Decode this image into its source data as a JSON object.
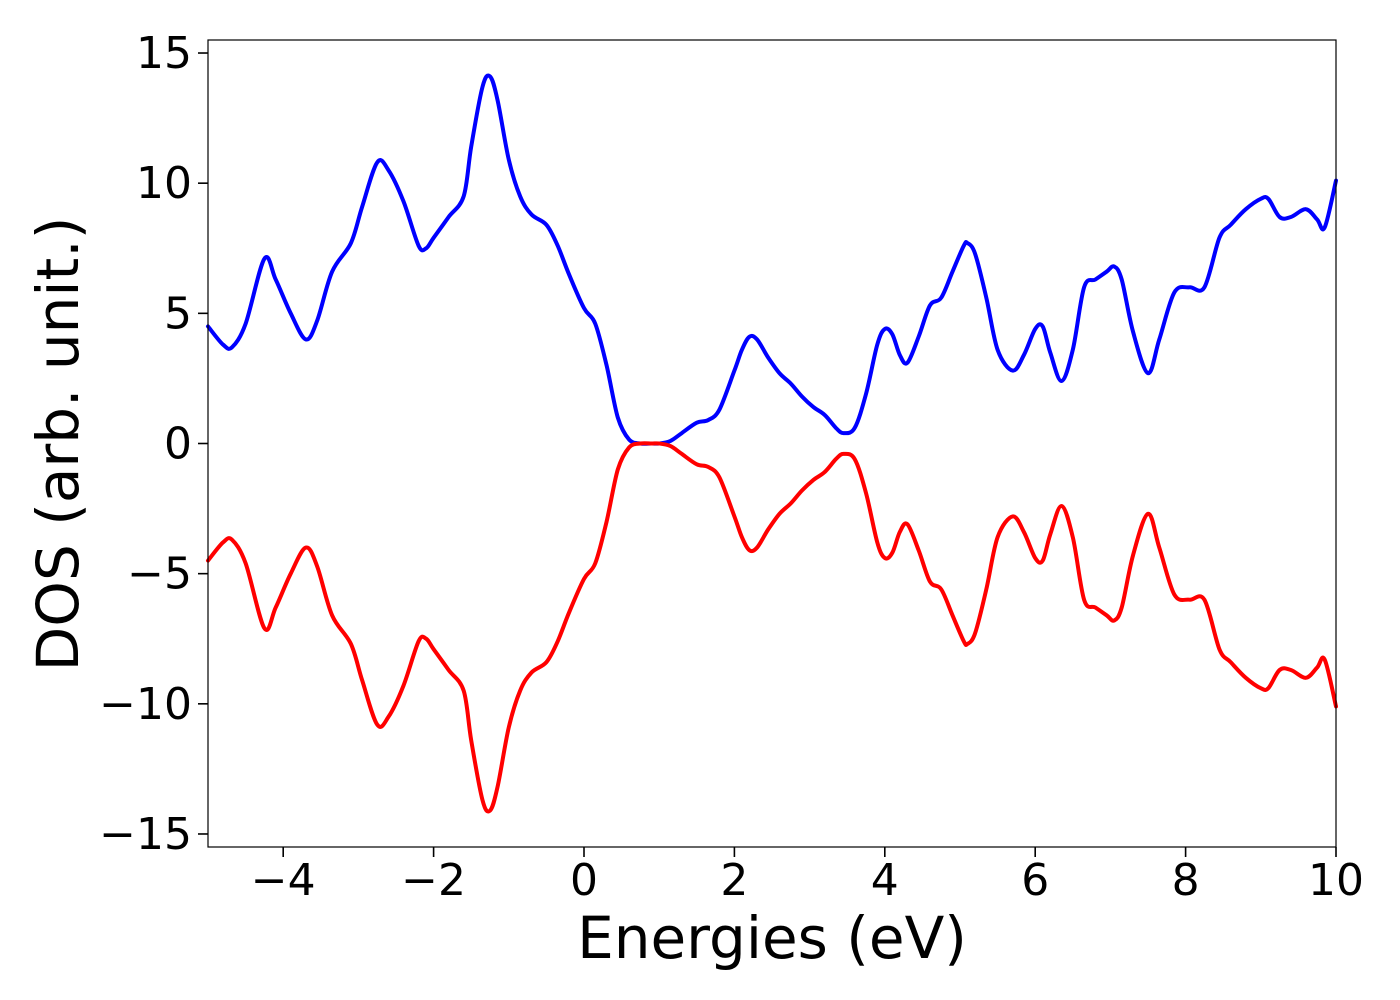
{
  "chart_data": {
    "type": "line",
    "title": "",
    "xlabel": "Energies (eV)",
    "ylabel": "DOS (arb. unit.)",
    "xlim": [
      -5,
      10
    ],
    "ylim": [
      -15.5,
      15.5
    ],
    "xticks": [
      -4,
      -2,
      0,
      2,
      4,
      6,
      8,
      10
    ],
    "xtick_labels": [
      "−4",
      "−2",
      "0",
      "2",
      "4",
      "6",
      "8",
      "10"
    ],
    "yticks": [
      15,
      10,
      5,
      0,
      -5,
      -10,
      -15
    ],
    "ytick_labels": [
      "15",
      "10",
      "5",
      "0",
      "−5",
      "−10",
      "−15"
    ],
    "grid": false,
    "legend": "none",
    "series": [
      {
        "color": "#0000ff",
        "x": [
          -5.0,
          -4.8,
          -4.68,
          -4.5,
          -4.25,
          -4.1,
          -3.9,
          -3.7,
          -3.55,
          -3.35,
          -3.1,
          -2.95,
          -2.75,
          -2.6,
          -2.4,
          -2.2,
          -2.1,
          -2.0,
          -1.8,
          -1.6,
          -1.5,
          -1.35,
          -1.25,
          -1.15,
          -1.0,
          -0.85,
          -0.7,
          -0.5,
          -0.35,
          -0.2,
          0.0,
          0.15,
          0.3,
          0.45,
          0.6,
          0.75,
          0.9,
          1.0,
          1.15,
          1.3,
          1.5,
          1.65,
          1.8,
          2.0,
          2.1,
          2.2,
          2.3,
          2.45,
          2.6,
          2.75,
          2.9,
          3.05,
          3.2,
          3.35,
          3.45,
          3.6,
          3.75,
          3.9,
          4.0,
          4.1,
          4.2,
          4.3,
          4.45,
          4.6,
          4.75,
          4.9,
          5.05,
          5.1,
          5.2,
          5.35,
          5.5,
          5.7,
          5.85,
          6.0,
          6.1,
          6.2,
          6.35,
          6.5,
          6.65,
          6.8,
          6.95,
          7.05,
          7.15,
          7.3,
          7.5,
          7.65,
          7.85,
          8.05,
          8.25,
          8.45,
          8.6,
          8.8,
          9.0,
          9.1,
          9.25,
          9.4,
          9.6,
          9.75,
          9.85,
          10.0
        ],
        "y": [
          4.5,
          3.8,
          3.7,
          4.6,
          7.1,
          6.3,
          5.0,
          4.0,
          4.7,
          6.6,
          7.7,
          9.1,
          10.8,
          10.5,
          9.3,
          7.6,
          7.5,
          7.9,
          8.7,
          9.5,
          11.4,
          13.7,
          14.1,
          13.2,
          10.9,
          9.5,
          8.8,
          8.4,
          7.6,
          6.5,
          5.2,
          4.6,
          3.0,
          1.0,
          0.15,
          0.0,
          0.0,
          0.0,
          0.1,
          0.4,
          0.8,
          0.9,
          1.3,
          2.8,
          3.6,
          4.1,
          4.0,
          3.3,
          2.7,
          2.3,
          1.8,
          1.4,
          1.1,
          0.6,
          0.4,
          0.6,
          1.9,
          3.8,
          4.4,
          4.2,
          3.4,
          3.1,
          4.1,
          5.3,
          5.6,
          6.6,
          7.6,
          7.7,
          7.3,
          5.6,
          3.6,
          2.8,
          3.4,
          4.4,
          4.5,
          3.5,
          2.4,
          3.6,
          6.0,
          6.3,
          6.6,
          6.8,
          6.3,
          4.3,
          2.7,
          4.0,
          5.8,
          6.0,
          6.0,
          7.9,
          8.4,
          9.0,
          9.4,
          9.4,
          8.7,
          8.7,
          9.0,
          8.6,
          8.3,
          10.1
        ]
      },
      {
        "color": "#ff0000",
        "x": [
          -5.0,
          -4.8,
          -4.68,
          -4.5,
          -4.25,
          -4.1,
          -3.9,
          -3.7,
          -3.55,
          -3.35,
          -3.1,
          -2.95,
          -2.75,
          -2.6,
          -2.4,
          -2.2,
          -2.1,
          -2.0,
          -1.8,
          -1.6,
          -1.5,
          -1.35,
          -1.25,
          -1.15,
          -1.0,
          -0.85,
          -0.7,
          -0.5,
          -0.35,
          -0.2,
          0.0,
          0.15,
          0.3,
          0.45,
          0.6,
          0.75,
          0.9,
          1.0,
          1.15,
          1.3,
          1.5,
          1.65,
          1.8,
          2.0,
          2.1,
          2.2,
          2.3,
          2.45,
          2.6,
          2.75,
          2.9,
          3.05,
          3.2,
          3.35,
          3.45,
          3.6,
          3.75,
          3.9,
          4.0,
          4.1,
          4.2,
          4.3,
          4.45,
          4.6,
          4.75,
          4.9,
          5.05,
          5.1,
          5.2,
          5.35,
          5.5,
          5.7,
          5.85,
          6.0,
          6.1,
          6.2,
          6.35,
          6.5,
          6.65,
          6.8,
          6.95,
          7.05,
          7.15,
          7.3,
          7.5,
          7.65,
          7.85,
          8.05,
          8.25,
          8.45,
          8.6,
          8.8,
          9.0,
          9.1,
          9.25,
          9.4,
          9.6,
          9.75,
          9.85,
          10.0
        ],
        "y": [
          -4.5,
          -3.8,
          -3.7,
          -4.6,
          -7.1,
          -6.3,
          -5.0,
          -4.0,
          -4.7,
          -6.6,
          -7.7,
          -9.1,
          -10.8,
          -10.5,
          -9.3,
          -7.6,
          -7.5,
          -7.9,
          -8.7,
          -9.5,
          -11.4,
          -13.7,
          -14.1,
          -13.2,
          -10.9,
          -9.5,
          -8.8,
          -8.4,
          -7.6,
          -6.5,
          -5.2,
          -4.6,
          -3.0,
          -1.0,
          -0.15,
          0.0,
          0.0,
          0.0,
          -0.1,
          -0.4,
          -0.8,
          -0.9,
          -1.3,
          -2.8,
          -3.6,
          -4.1,
          -4.0,
          -3.3,
          -2.7,
          -2.3,
          -1.8,
          -1.4,
          -1.1,
          -0.6,
          -0.4,
          -0.6,
          -1.9,
          -3.8,
          -4.4,
          -4.2,
          -3.4,
          -3.1,
          -4.1,
          -5.3,
          -5.6,
          -6.6,
          -7.6,
          -7.7,
          -7.3,
          -5.6,
          -3.6,
          -2.8,
          -3.4,
          -4.4,
          -4.5,
          -3.5,
          -2.4,
          -3.6,
          -6.0,
          -6.3,
          -6.6,
          -6.8,
          -6.3,
          -4.3,
          -2.7,
          -4.0,
          -5.8,
          -6.0,
          -6.0,
          -7.9,
          -8.4,
          -9.0,
          -9.4,
          -9.4,
          -8.7,
          -8.7,
          -9.0,
          -8.6,
          -8.3,
          -10.1
        ]
      }
    ]
  }
}
